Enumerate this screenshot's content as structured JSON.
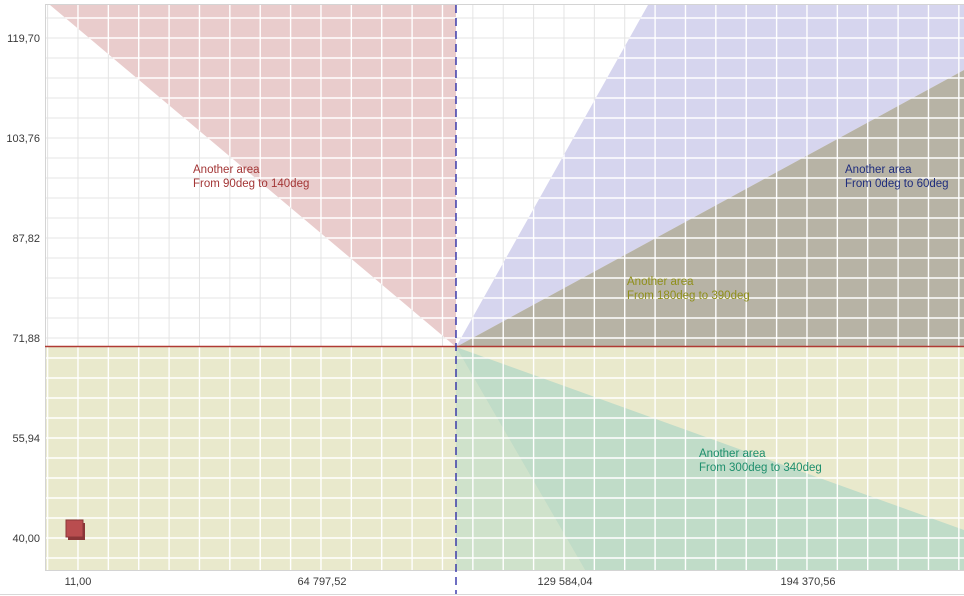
{
  "chart_data": {
    "type": "scatter",
    "title": "",
    "grid": true,
    "legend": false,
    "x_axis": {
      "tick_labels": [
        "11,00",
        "64 797,52",
        "129 584,04",
        "194 370,56"
      ],
      "tick_values": [
        11.0,
        64797.52,
        129584.04,
        194370.56
      ]
    },
    "y_axis": {
      "tick_labels": [
        "119,70",
        "103,76",
        "87,82",
        "71,88",
        "55,94",
        "40,00"
      ],
      "tick_values": [
        119.7,
        103.76,
        87.82,
        71.88,
        55.94,
        40.0
      ]
    },
    "points": [
      {
        "x": 11,
        "y": 41.3,
        "marker": "square",
        "color": "#b94d4f"
      }
    ],
    "reference_lines": [
      {
        "orientation": "vertical",
        "style": "dashed",
        "color": "#3030a8",
        "value_approx": 100790
      },
      {
        "orientation": "horizontal",
        "style": "solid",
        "color": "#b03a34",
        "value_approx": 70.45
      }
    ],
    "angle_areas": [
      {
        "label_line1": "Another area",
        "label_line2": "From 90deg to 140deg",
        "from_deg": 90,
        "to_deg": 140,
        "label_color": "#a33636"
      },
      {
        "label_line1": "Another area",
        "label_line2": "From 0deg to 60deg",
        "from_deg": 0,
        "to_deg": 60,
        "label_color": "#1f2d7d"
      },
      {
        "label_line1": "Another area",
        "label_line2": "From 180deg to 390deg",
        "from_deg": 180,
        "to_deg": 390,
        "label_color": "#8f8f1a"
      },
      {
        "label_line1": "Another area",
        "label_line2": "From 300deg to 340deg",
        "from_deg": 300,
        "to_deg": 340,
        "label_color": "#1e8f6d"
      }
    ],
    "region_fills": {
      "sector_90_140": "#e9cccc",
      "sector_30_60": "#d6d5ee",
      "sector_0_30_overlap": "#b7b3a5",
      "lower_half_180_390": "#e9e9cc",
      "sector_270_300": "#cfe2cb",
      "sector_300_340": "#c0dcc8"
    }
  }
}
